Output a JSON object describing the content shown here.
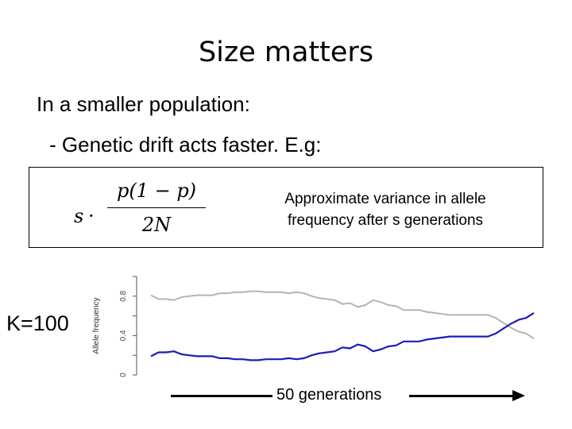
{
  "slide": {
    "title": "Size matters",
    "bullet1": "In a smaller population:",
    "bullet2": "- Genetic drift acts faster.  E.g:",
    "formula": {
      "s": "s",
      "dot": "·",
      "numerator": "p(1 − p)",
      "denominator": "2N"
    },
    "formula_desc_line1": "Approximate variance in allele",
    "formula_desc_line2": "frequency after s generations",
    "k_label": "K=100",
    "gen_label": "50 generations"
  },
  "chart_data": {
    "type": "line",
    "ylabel": "Allele frequency",
    "yticks": [
      "0",
      "0.4",
      "0.8"
    ],
    "ylim": [
      0,
      1
    ],
    "x": [
      0,
      1,
      2,
      3,
      4,
      5,
      6,
      7,
      8,
      9,
      10,
      11,
      12,
      13,
      14,
      15,
      16,
      17,
      18,
      19,
      20,
      21,
      22,
      23,
      24,
      25,
      26,
      27,
      28,
      29,
      30,
      31,
      32,
      33,
      34,
      35,
      36,
      37,
      38,
      39,
      40,
      41,
      42,
      43,
      44,
      45,
      46,
      47,
      48,
      49,
      50
    ],
    "series": [
      {
        "color": "#b4b4b4",
        "values": [
          0.81,
          0.77,
          0.77,
          0.76,
          0.79,
          0.8,
          0.81,
          0.81,
          0.81,
          0.83,
          0.83,
          0.84,
          0.84,
          0.85,
          0.85,
          0.84,
          0.84,
          0.84,
          0.83,
          0.84,
          0.83,
          0.8,
          0.78,
          0.77,
          0.76,
          0.72,
          0.73,
          0.69,
          0.71,
          0.76,
          0.74,
          0.71,
          0.7,
          0.66,
          0.66,
          0.66,
          0.64,
          0.63,
          0.62,
          0.61,
          0.61,
          0.61,
          0.61,
          0.61,
          0.61,
          0.58,
          0.53,
          0.48,
          0.44,
          0.42,
          0.37
        ]
      },
      {
        "color": "#1c1cb8",
        "values": [
          0.19,
          0.23,
          0.23,
          0.24,
          0.21,
          0.2,
          0.19,
          0.19,
          0.19,
          0.17,
          0.17,
          0.16,
          0.16,
          0.15,
          0.15,
          0.16,
          0.16,
          0.16,
          0.17,
          0.16,
          0.17,
          0.2,
          0.22,
          0.23,
          0.24,
          0.28,
          0.27,
          0.31,
          0.29,
          0.24,
          0.26,
          0.29,
          0.3,
          0.34,
          0.34,
          0.34,
          0.36,
          0.37,
          0.38,
          0.39,
          0.39,
          0.39,
          0.39,
          0.39,
          0.39,
          0.42,
          0.47,
          0.52,
          0.56,
          0.58,
          0.63
        ]
      }
    ]
  }
}
